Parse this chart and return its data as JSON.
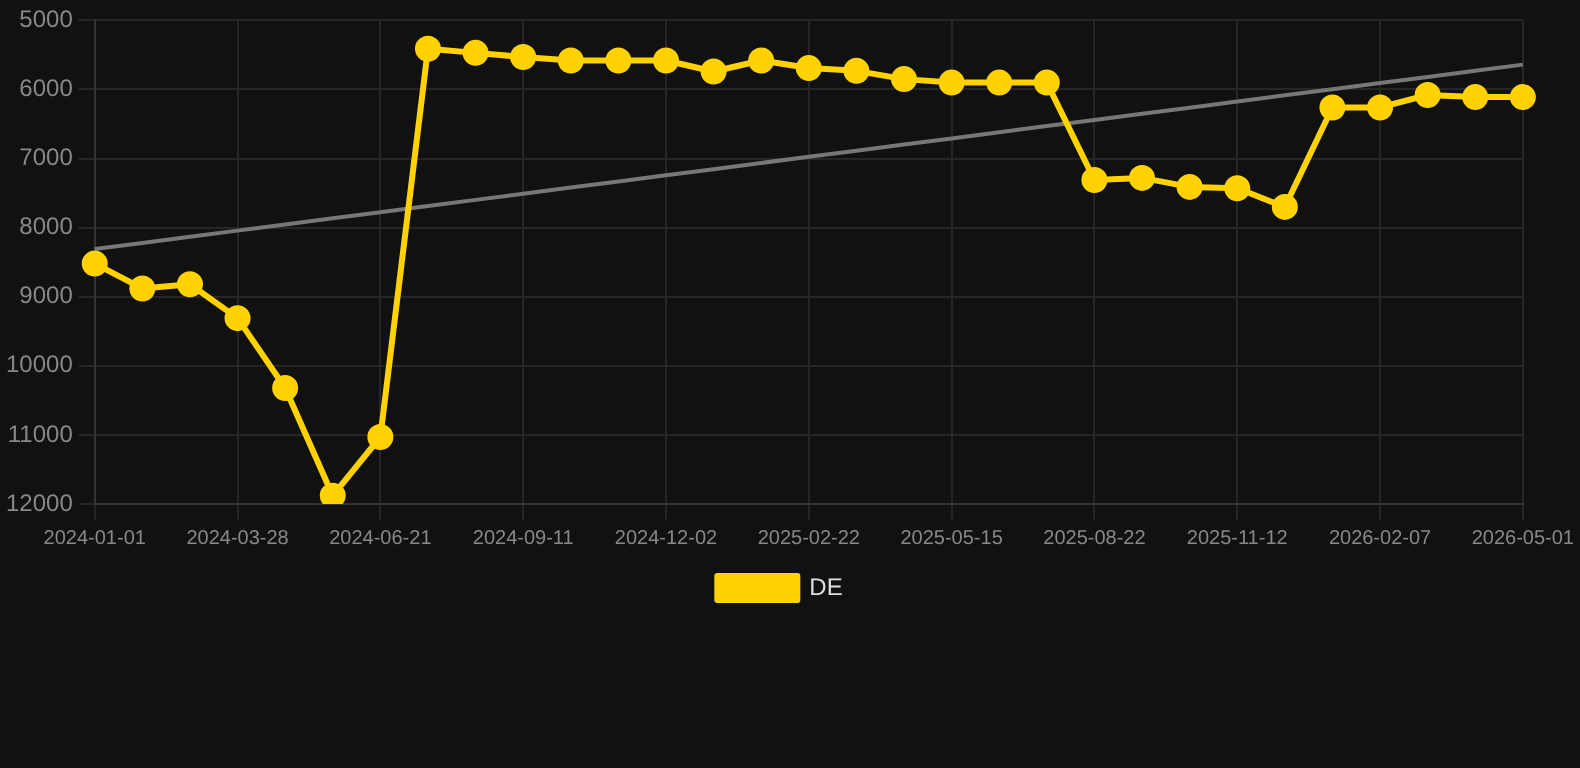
{
  "chart_data": {
    "type": "line",
    "categories": [
      "2024-01-01",
      null,
      null,
      "2024-03-28",
      null,
      null,
      "2024-06-21",
      null,
      null,
      "2024-09-11",
      null,
      null,
      "2024-12-02",
      null,
      null,
      "2025-02-22",
      null,
      null,
      "2025-05-15",
      null,
      null,
      "2025-08-22",
      null,
      null,
      "2025-11-12",
      null,
      null,
      "2026-02-07",
      null,
      null,
      "2026-05-01"
    ],
    "series": [
      {
        "name": "DE",
        "color": "#ffd200",
        "values": [
          8520,
          8880,
          8820,
          9310,
          10320,
          11880,
          11030,
          5410,
          5470,
          5530,
          5580,
          5580,
          5580,
          5740,
          5580,
          5690,
          5730,
          5850,
          5900,
          5900,
          5900,
          7310,
          7280,
          7410,
          7430,
          7700,
          6260,
          6260,
          6080,
          6110,
          6110
        ]
      },
      {
        "type": "line",
        "color": "#777777",
        "values": [
          8310,
          8221,
          8132,
          8043,
          7954,
          7865,
          7776,
          7687,
          7598,
          7509,
          7420,
          7331,
          7242,
          7153,
          7064,
          6975,
          6886,
          6797,
          6708,
          6619,
          6530,
          6441,
          6352,
          6263,
          6174,
          6085,
          5996,
          5907,
          5818,
          5729,
          5640
        ],
        "marker": "none"
      }
    ],
    "ylim": [
      12000,
      5000
    ],
    "yticks": [
      5000,
      6000,
      7000,
      8000,
      9000,
      10000,
      11000,
      12000
    ],
    "grid": true,
    "legend": "bottom",
    "marker": "circle",
    "line_style": "solid"
  }
}
